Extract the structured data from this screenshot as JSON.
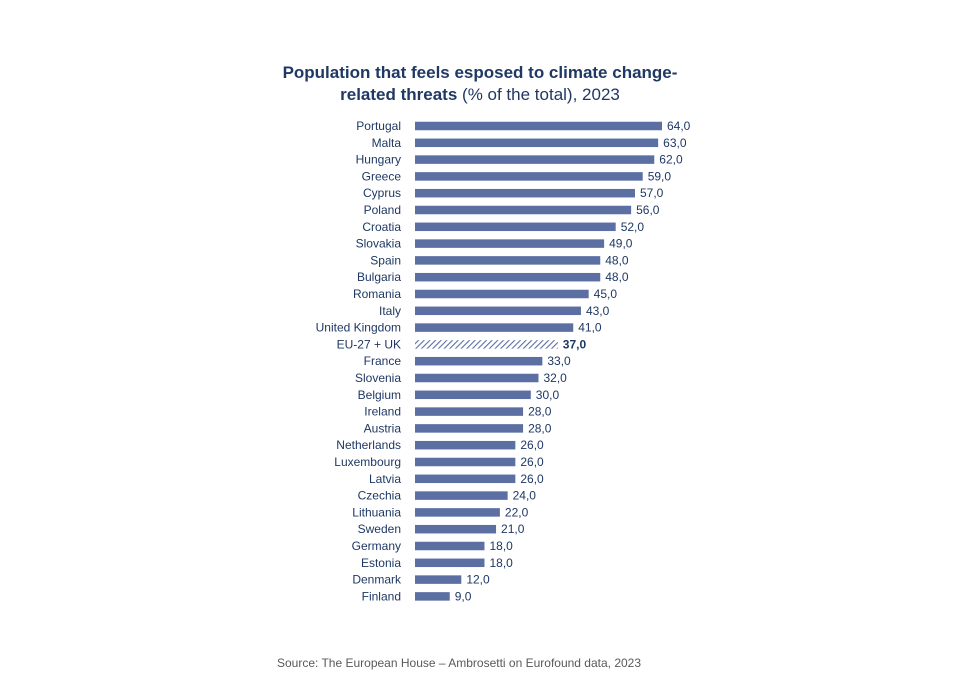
{
  "title": {
    "bold_line1": "Population that feels esposed to climate change-",
    "bold_line2": "related threats",
    "normal_suffix": " (% of the total), 2023"
  },
  "source": "Source: The European House – Ambrosetti on Eurofound data, 2023",
  "colors": {
    "bar": "#5b6fa3",
    "highlight": "#1f3864",
    "label": "#1f3864"
  },
  "chart_data": {
    "type": "bar",
    "orientation": "horizontal",
    "highlight_category": "EU-27 + UK",
    "highlight_style": "hatched",
    "categories": [
      "Portugal",
      "Malta",
      "Hungary",
      "Greece",
      "Cyprus",
      "Poland",
      "Croatia",
      "Slovakia",
      "Spain",
      "Bulgaria",
      "Romania",
      "Italy",
      "United Kingdom",
      "EU-27 + UK",
      "France",
      "Slovenia",
      "Belgium",
      "Ireland",
      "Austria",
      "Netherlands",
      "Luxembourg",
      "Latvia",
      "Czechia",
      "Lithuania",
      "Sweden",
      "Germany",
      "Estonia",
      "Denmark",
      "Finland"
    ],
    "values": [
      64.0,
      63.0,
      62.0,
      59.0,
      57.0,
      56.0,
      52.0,
      49.0,
      48.0,
      48.0,
      45.0,
      43.0,
      41.0,
      37.0,
      33.0,
      32.0,
      30.0,
      28.0,
      28.0,
      26.0,
      26.0,
      26.0,
      24.0,
      22.0,
      21.0,
      18.0,
      18.0,
      12.0,
      9.0
    ],
    "value_labels": [
      "64,0",
      "63,0",
      "62,0",
      "59,0",
      "57,0",
      "56,0",
      "52,0",
      "49,0",
      "48,0",
      "48,0",
      "45,0",
      "43,0",
      "41,0",
      "37,0",
      "33,0",
      "32,0",
      "30,0",
      "28,0",
      "28,0",
      "26,0",
      "26,0",
      "26,0",
      "24,0",
      "22,0",
      "21,0",
      "18,0",
      "18,0",
      "12,0",
      "9,0"
    ],
    "xlim": [
      0,
      64
    ],
    "grid": false
  }
}
